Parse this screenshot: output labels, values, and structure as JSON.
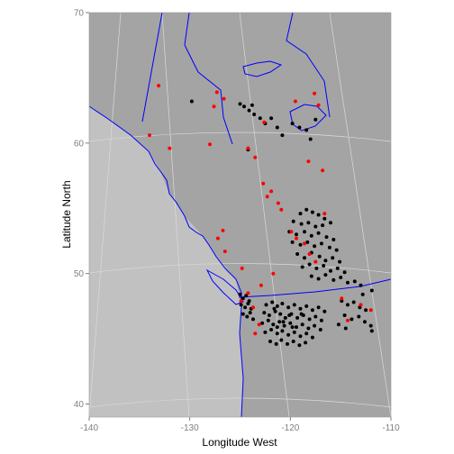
{
  "chart_data": {
    "type": "scatter",
    "title": "",
    "xlabel": "Longitude West",
    "ylabel": "Latitude North",
    "xlim": [
      -140,
      -110
    ],
    "ylim": [
      39,
      70
    ],
    "x_ticks": [
      -140,
      -130,
      -120,
      -110
    ],
    "y_ticks": [
      40,
      50,
      60,
      70
    ],
    "grid": true,
    "legend": "none",
    "colors": {
      "ocean": "#c1c1c1",
      "land": "#a4a4a4",
      "panel_border": "#9c9c9c",
      "coastline": "#0000ff",
      "graticule": "#dadada",
      "series_black": "#000000",
      "series_red": "#ff0000"
    },
    "series": [
      {
        "color": "#000000",
        "points": [
          [
            -129.8,
            63.2
          ],
          [
            -125.0,
            63.0
          ],
          [
            -124.6,
            62.8
          ],
          [
            -124.1,
            62.5
          ],
          [
            -123.8,
            62.9
          ],
          [
            -123.6,
            62.2
          ],
          [
            -123.0,
            61.9
          ],
          [
            -122.5,
            61.5
          ],
          [
            -121.9,
            61.9
          ],
          [
            -121.3,
            61.2
          ],
          [
            -120.8,
            60.6
          ],
          [
            -119.8,
            61.5
          ],
          [
            -119.1,
            61.2
          ],
          [
            -118.4,
            61.0
          ],
          [
            -118.0,
            60.3
          ],
          [
            -117.5,
            61.8
          ],
          [
            -124.2,
            59.5
          ],
          [
            -119.0,
            54.6
          ],
          [
            -118.4,
            54.9
          ],
          [
            -117.8,
            54.7
          ],
          [
            -117.2,
            54.5
          ],
          [
            -116.6,
            54.2
          ],
          [
            -119.7,
            54.0
          ],
          [
            -118.9,
            53.8
          ],
          [
            -118.2,
            53.9
          ],
          [
            -117.5,
            53.6
          ],
          [
            -116.8,
            53.7
          ],
          [
            -116.0,
            53.9
          ],
          [
            -120.1,
            53.2
          ],
          [
            -119.4,
            53.0
          ],
          [
            -118.6,
            53.2
          ],
          [
            -117.9,
            52.9
          ],
          [
            -117.2,
            53.1
          ],
          [
            -116.4,
            52.8
          ],
          [
            -115.7,
            52.6
          ],
          [
            -119.8,
            52.4
          ],
          [
            -119.0,
            52.2
          ],
          [
            -118.3,
            52.4
          ],
          [
            -117.6,
            52.1
          ],
          [
            -116.9,
            52.3
          ],
          [
            -116.1,
            52.0
          ],
          [
            -115.4,
            51.8
          ],
          [
            -119.3,
            51.5
          ],
          [
            -118.6,
            51.2
          ],
          [
            -117.9,
            51.6
          ],
          [
            -117.1,
            51.3
          ],
          [
            -116.5,
            51.0
          ],
          [
            -115.8,
            51.2
          ],
          [
            -115.1,
            50.9
          ],
          [
            -118.8,
            50.5
          ],
          [
            -118.1,
            50.7
          ],
          [
            -117.4,
            50.4
          ],
          [
            -116.7,
            50.6
          ],
          [
            -116.0,
            50.2
          ],
          [
            -115.3,
            50.4
          ],
          [
            -114.6,
            50.1
          ],
          [
            -117.9,
            49.8
          ],
          [
            -117.2,
            49.6
          ],
          [
            -116.5,
            49.9
          ],
          [
            -115.7,
            49.5
          ],
          [
            -115.0,
            49.7
          ],
          [
            -114.3,
            49.3
          ],
          [
            -113.6,
            49.4
          ],
          [
            -113.0,
            49.1
          ],
          [
            -125.0,
            48.4
          ],
          [
            -124.7,
            48.1
          ],
          [
            -124.4,
            48.3
          ],
          [
            -124.1,
            47.9
          ],
          [
            -124.9,
            47.6
          ],
          [
            -124.5,
            47.4
          ],
          [
            -124.2,
            47.7
          ],
          [
            -123.9,
            47.3
          ],
          [
            -124.7,
            46.9
          ],
          [
            -124.3,
            46.7
          ],
          [
            -124.0,
            47.0
          ],
          [
            -123.7,
            46.5
          ],
          [
            -122.4,
            47.6
          ],
          [
            -121.8,
            47.8
          ],
          [
            -121.3,
            47.5
          ],
          [
            -120.8,
            47.7
          ],
          [
            -120.2,
            47.4
          ],
          [
            -119.6,
            47.6
          ],
          [
            -119.0,
            47.3
          ],
          [
            -118.4,
            47.5
          ],
          [
            -117.8,
            47.2
          ],
          [
            -117.2,
            47.4
          ],
          [
            -116.6,
            47.1
          ],
          [
            -122.6,
            47.0
          ],
          [
            -122.1,
            46.8
          ],
          [
            -121.5,
            47.1
          ],
          [
            -121.0,
            46.9
          ],
          [
            -120.5,
            46.6
          ],
          [
            -119.9,
            46.9
          ],
          [
            -119.3,
            46.6
          ],
          [
            -118.7,
            46.8
          ],
          [
            -118.1,
            46.5
          ],
          [
            -117.5,
            46.7
          ],
          [
            -116.9,
            46.4
          ],
          [
            -122.8,
            46.2
          ],
          [
            -122.2,
            46.4
          ],
          [
            -121.7,
            46.1
          ],
          [
            -121.1,
            46.3
          ],
          [
            -120.6,
            46.0
          ],
          [
            -120.0,
            46.2
          ],
          [
            -119.4,
            45.9
          ],
          [
            -118.8,
            46.1
          ],
          [
            -118.2,
            45.8
          ],
          [
            -117.6,
            46.0
          ],
          [
            -117.0,
            45.7
          ],
          [
            -122.5,
            45.5
          ],
          [
            -121.9,
            45.7
          ],
          [
            -121.3,
            45.4
          ],
          [
            -120.8,
            45.6
          ],
          [
            -120.2,
            45.3
          ],
          [
            -119.6,
            45.5
          ],
          [
            -119.0,
            45.2
          ],
          [
            -118.4,
            45.4
          ],
          [
            -117.8,
            45.1
          ],
          [
            -122.0,
            44.8
          ],
          [
            -121.4,
            44.6
          ],
          [
            -120.9,
            44.9
          ],
          [
            -120.3,
            44.6
          ],
          [
            -119.7,
            44.8
          ],
          [
            -119.1,
            44.5
          ],
          [
            -118.5,
            44.7
          ],
          [
            -121.6,
            47.3
          ],
          [
            -120.7,
            46.3
          ],
          [
            -119.8,
            45.9
          ],
          [
            -118.9,
            46.9
          ],
          [
            -121.3,
            45.9
          ],
          [
            -120.1,
            46.8
          ],
          [
            -114.9,
            47.9
          ],
          [
            -114.3,
            47.6
          ],
          [
            -113.7,
            47.8
          ],
          [
            -113.1,
            47.4
          ],
          [
            -112.5,
            47.2
          ],
          [
            -114.6,
            46.8
          ],
          [
            -113.9,
            46.5
          ],
          [
            -113.2,
            46.7
          ],
          [
            -112.6,
            46.3
          ],
          [
            -112.0,
            46.0
          ],
          [
            -115.2,
            46.1
          ],
          [
            -114.5,
            45.8
          ],
          [
            -111.9,
            45.6
          ],
          [
            -112.8,
            48.4
          ],
          [
            -111.9,
            48.7
          ]
        ]
      },
      {
        "color": "#ff0000",
        "points": [
          [
            -133.1,
            64.4
          ],
          [
            -127.3,
            63.9
          ],
          [
            -126.6,
            63.4
          ],
          [
            -127.6,
            62.8
          ],
          [
            -134.0,
            60.6
          ],
          [
            -132.0,
            59.6
          ],
          [
            -128.0,
            59.9
          ],
          [
            -124.2,
            59.6
          ],
          [
            -123.5,
            58.9
          ],
          [
            -119.5,
            63.2
          ],
          [
            -117.6,
            63.8
          ],
          [
            -117.2,
            62.9
          ],
          [
            -122.6,
            61.6
          ],
          [
            -118.2,
            58.6
          ],
          [
            -116.8,
            57.9
          ],
          [
            -122.7,
            56.9
          ],
          [
            -121.9,
            56.3
          ],
          [
            -122.3,
            55.9
          ],
          [
            -121.2,
            55.4
          ],
          [
            -120.9,
            54.9
          ],
          [
            -116.6,
            54.6
          ],
          [
            -119.9,
            53.2
          ],
          [
            -119.4,
            52.7
          ],
          [
            -118.6,
            52.3
          ],
          [
            -118.1,
            51.5
          ],
          [
            -117.5,
            50.9
          ],
          [
            -126.7,
            53.3
          ],
          [
            -127.2,
            52.7
          ],
          [
            -126.5,
            51.7
          ],
          [
            -124.8,
            50.4
          ],
          [
            -121.7,
            50.0
          ],
          [
            -122.9,
            49.1
          ],
          [
            -124.2,
            48.5
          ],
          [
            -124.9,
            47.9
          ],
          [
            -123.7,
            47.4
          ],
          [
            -114.9,
            48.1
          ],
          [
            -113.0,
            47.6
          ],
          [
            -112.0,
            47.2
          ],
          [
            -114.3,
            46.4
          ],
          [
            -123.1,
            46.1
          ],
          [
            -123.5,
            45.4
          ]
        ]
      }
    ]
  }
}
